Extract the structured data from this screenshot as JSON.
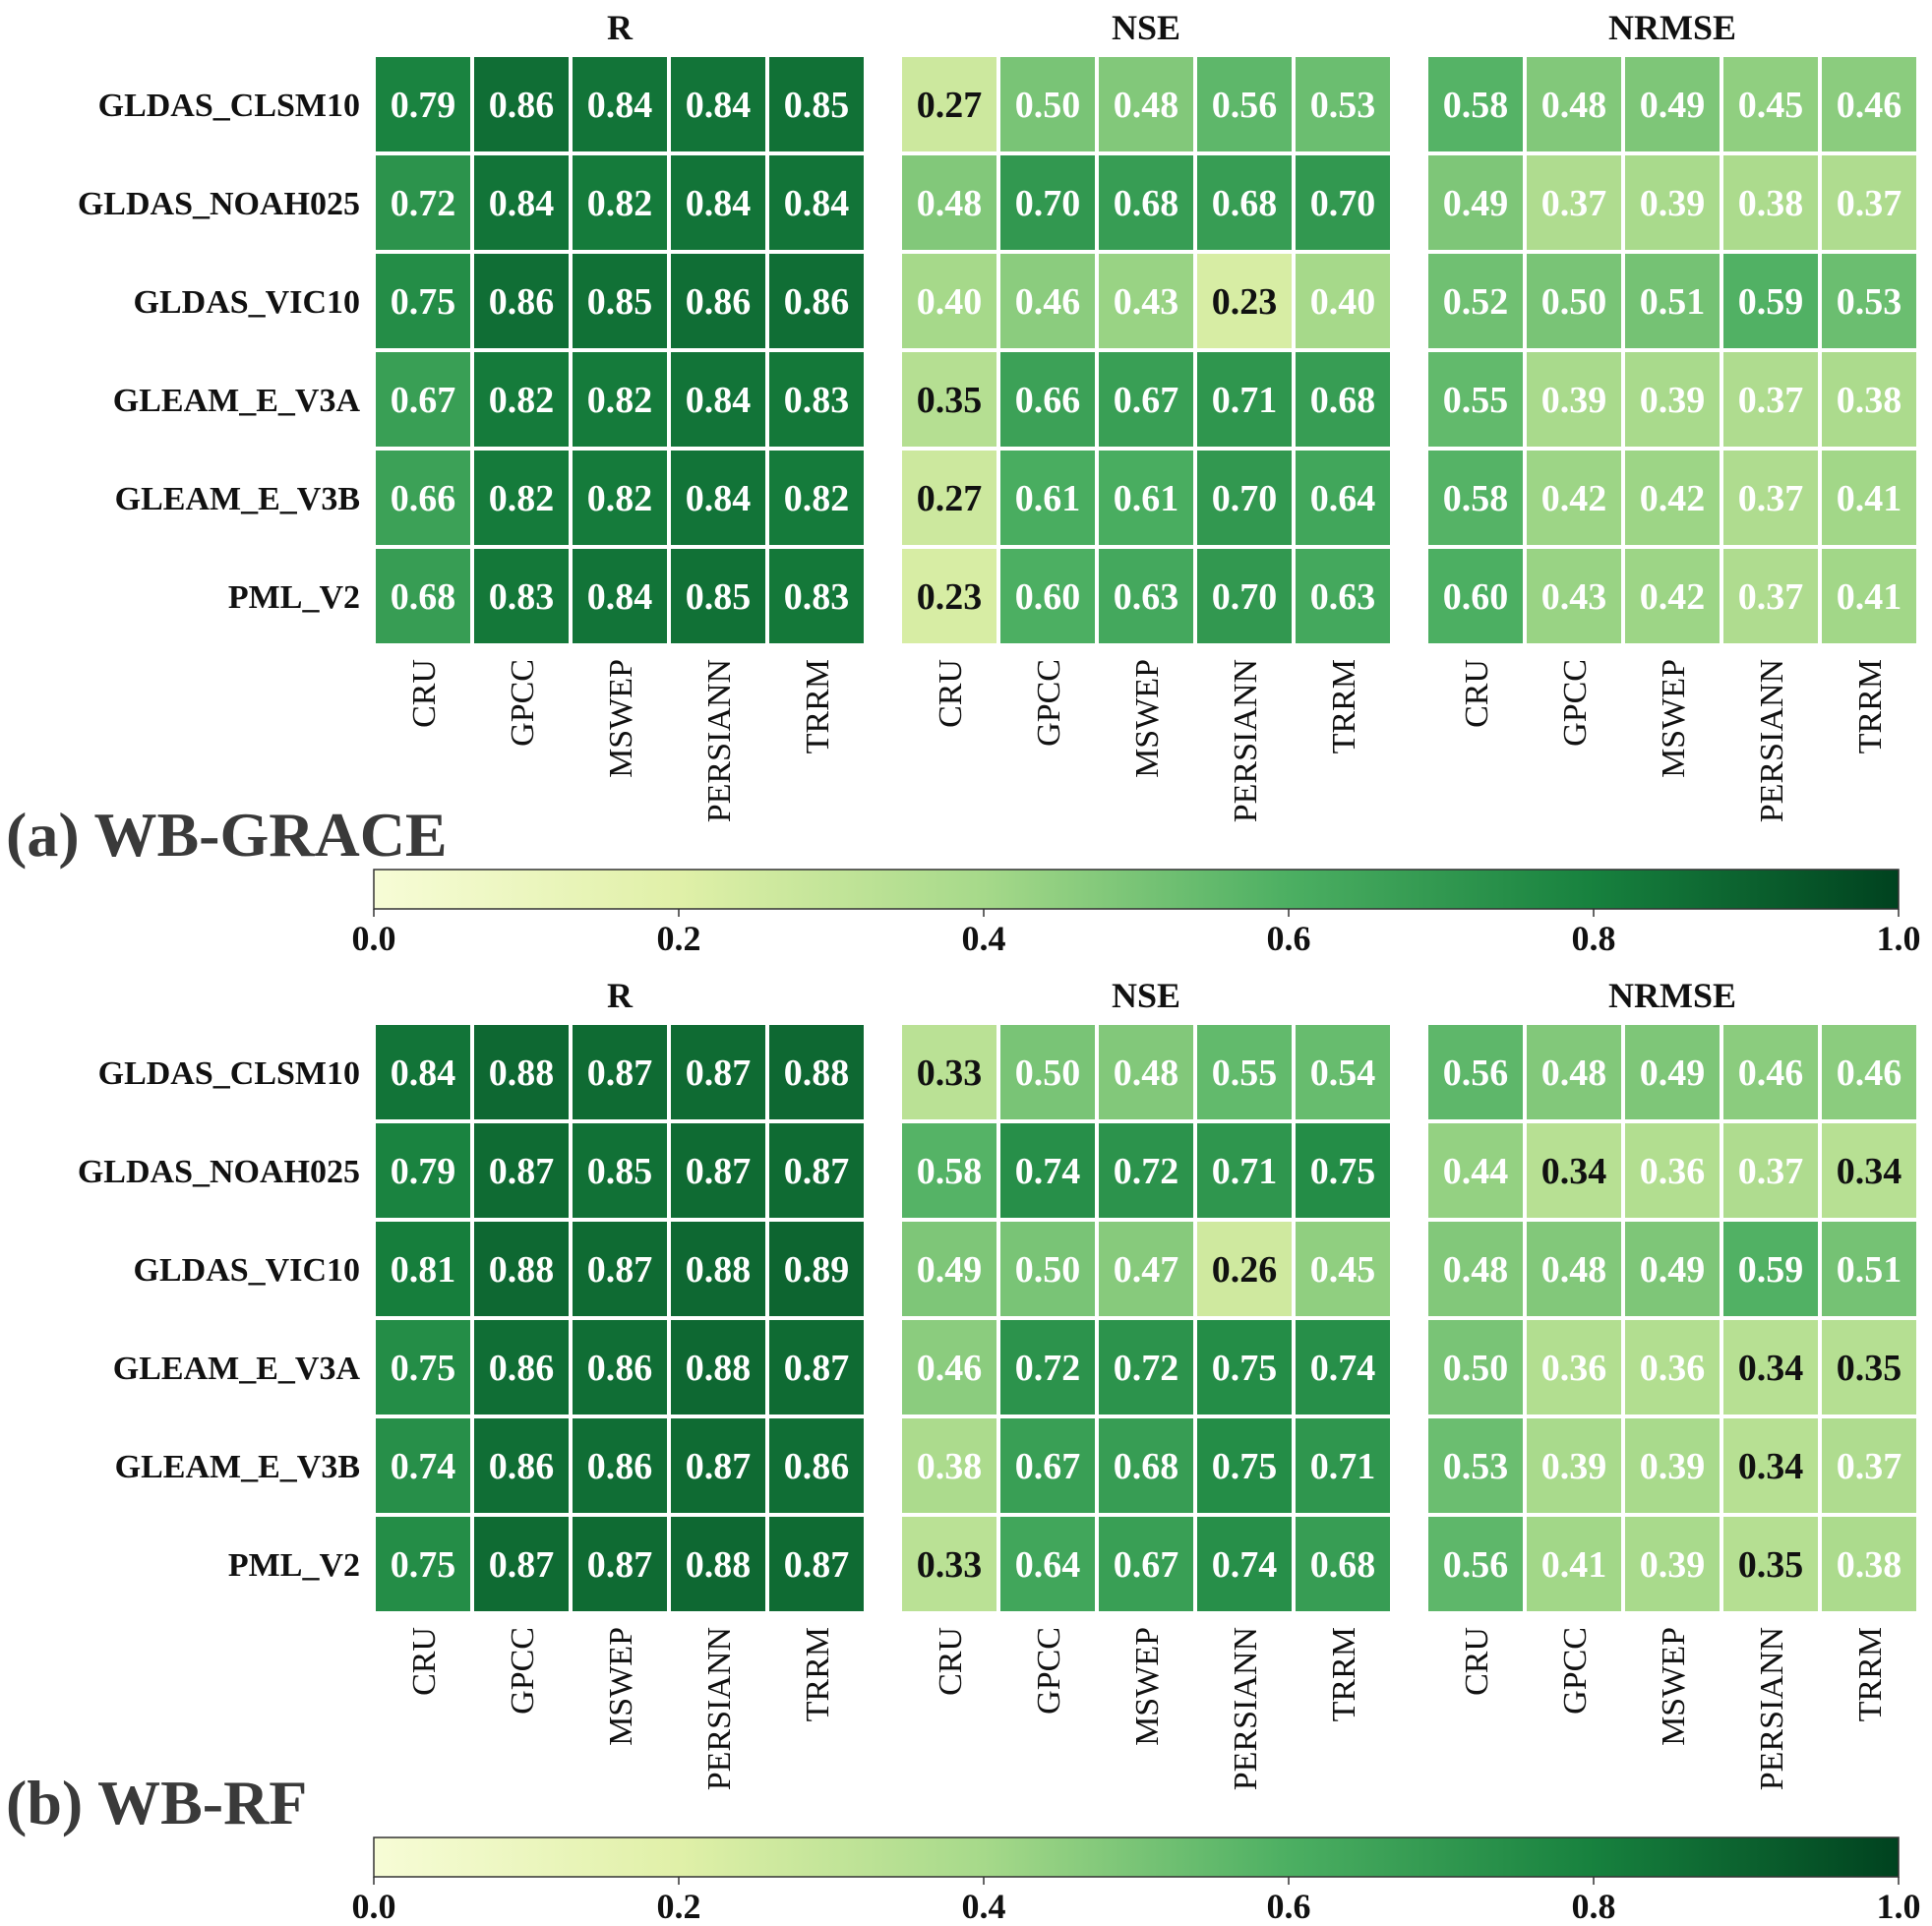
{
  "chart_data": [
    {
      "type": "heatmap",
      "section_label": "(a) WB-GRACE",
      "rows": [
        "GLDAS_CLSM10",
        "GLDAS_NOAH025",
        "GLDAS_VIC10",
        "GLEAM_E_V3A",
        "GLEAM_E_V3B",
        "PML_V2"
      ],
      "columns": [
        "CRU",
        "GPCC",
        "MSWEP",
        "PERSIANN",
        "TRRM"
      ],
      "panels": [
        {
          "title": "R",
          "values": [
            [
              0.79,
              0.86,
              0.84,
              0.84,
              0.85
            ],
            [
              0.72,
              0.84,
              0.82,
              0.84,
              0.84
            ],
            [
              0.75,
              0.86,
              0.85,
              0.86,
              0.86
            ],
            [
              0.67,
              0.82,
              0.82,
              0.84,
              0.83
            ],
            [
              0.66,
              0.82,
              0.82,
              0.84,
              0.82
            ],
            [
              0.68,
              0.83,
              0.84,
              0.85,
              0.83
            ]
          ]
        },
        {
          "title": "NSE",
          "values": [
            [
              0.27,
              0.5,
              0.48,
              0.56,
              0.53
            ],
            [
              0.48,
              0.7,
              0.68,
              0.68,
              0.7
            ],
            [
              0.4,
              0.46,
              0.43,
              0.23,
              0.4
            ],
            [
              0.35,
              0.66,
              0.67,
              0.71,
              0.68
            ],
            [
              0.27,
              0.61,
              0.61,
              0.7,
              0.64
            ],
            [
              0.23,
              0.6,
              0.63,
              0.7,
              0.63
            ]
          ]
        },
        {
          "title": "NRMSE",
          "values": [
            [
              0.58,
              0.48,
              0.49,
              0.45,
              0.46
            ],
            [
              0.49,
              0.37,
              0.39,
              0.38,
              0.37
            ],
            [
              0.52,
              0.5,
              0.51,
              0.59,
              0.53
            ],
            [
              0.55,
              0.39,
              0.39,
              0.37,
              0.38
            ],
            [
              0.58,
              0.42,
              0.42,
              0.37,
              0.41
            ],
            [
              0.6,
              0.43,
              0.42,
              0.37,
              0.41
            ]
          ]
        }
      ],
      "colorbar": {
        "range": [
          0.0,
          1.0
        ],
        "ticks": [
          "0.0",
          "0.2",
          "0.4",
          "0.6",
          "0.8",
          "1.0"
        ],
        "colormap": "Greens"
      }
    },
    {
      "type": "heatmap",
      "section_label": "(b) WB-RF",
      "rows": [
        "GLDAS_CLSM10",
        "GLDAS_NOAH025",
        "GLDAS_VIC10",
        "GLEAM_E_V3A",
        "GLEAM_E_V3B",
        "PML_V2"
      ],
      "columns": [
        "CRU",
        "GPCC",
        "MSWEP",
        "PERSIANN",
        "TRRM"
      ],
      "panels": [
        {
          "title": "R",
          "values": [
            [
              0.84,
              0.88,
              0.87,
              0.87,
              0.88
            ],
            [
              0.79,
              0.87,
              0.85,
              0.87,
              0.87
            ],
            [
              0.81,
              0.88,
              0.87,
              0.88,
              0.89
            ],
            [
              0.75,
              0.86,
              0.86,
              0.88,
              0.87
            ],
            [
              0.74,
              0.86,
              0.86,
              0.87,
              0.86
            ],
            [
              0.75,
              0.87,
              0.87,
              0.88,
              0.87
            ]
          ]
        },
        {
          "title": "NSE",
          "values": [
            [
              0.33,
              0.5,
              0.48,
              0.55,
              0.54
            ],
            [
              0.58,
              0.74,
              0.72,
              0.71,
              0.75
            ],
            [
              0.49,
              0.5,
              0.47,
              0.26,
              0.45
            ],
            [
              0.46,
              0.72,
              0.72,
              0.75,
              0.74
            ],
            [
              0.38,
              0.67,
              0.68,
              0.75,
              0.71
            ],
            [
              0.33,
              0.64,
              0.67,
              0.74,
              0.68
            ]
          ]
        },
        {
          "title": "NRMSE",
          "values": [
            [
              0.56,
              0.48,
              0.49,
              0.46,
              0.46
            ],
            [
              0.44,
              0.34,
              0.36,
              0.37,
              0.34
            ],
            [
              0.48,
              0.48,
              0.49,
              0.59,
              0.51
            ],
            [
              0.5,
              0.36,
              0.36,
              0.34,
              0.35
            ],
            [
              0.53,
              0.39,
              0.39,
              0.34,
              0.37
            ],
            [
              0.56,
              0.41,
              0.39,
              0.35,
              0.38
            ]
          ]
        }
      ],
      "colorbar": {
        "range": [
          0.0,
          1.0
        ],
        "ticks": [
          "0.0",
          "0.2",
          "0.4",
          "0.6",
          "0.8",
          "1.0"
        ],
        "colormap": "Greens"
      }
    }
  ]
}
